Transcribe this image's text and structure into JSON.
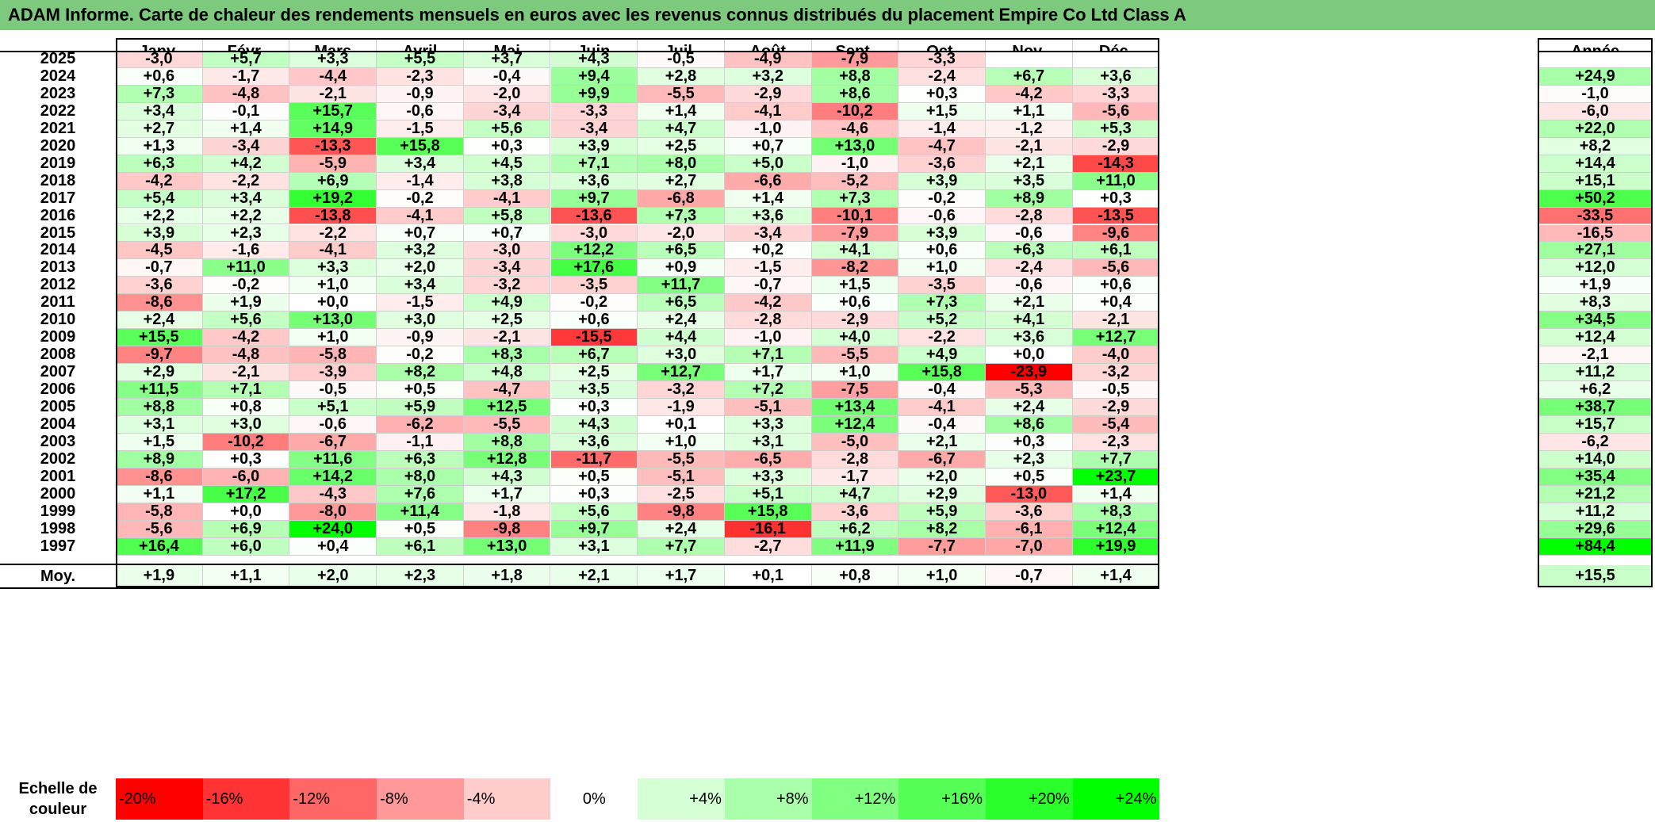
{
  "title": "ADAM Informe. Carte de chaleur des rendements mensuels en euros avec les revenus connus distribués du placement Empire Co Ltd Class A",
  "chart_data": {
    "type": "heatmap",
    "columns": [
      "Janv.",
      "Févr.",
      "Mars",
      "Avril",
      "Mai",
      "Juin",
      "Juil.",
      "Août",
      "Sept.",
      "Oct.",
      "Nov.",
      "Déc."
    ],
    "annual_header": "Année",
    "rows": [
      {
        "year": "2025",
        "values": [
          "-3,0",
          "+5,7",
          "+3,3",
          "+5,5",
          "+3,7",
          "+4,3",
          "-0,5",
          "-4,9",
          "-7,9",
          "-3,3",
          "",
          ""
        ],
        "annual": ""
      },
      {
        "year": "2024",
        "values": [
          "+0,6",
          "-1,7",
          "-4,4",
          "-2,3",
          "-0,4",
          "+9,4",
          "+2,8",
          "+3,2",
          "+8,8",
          "-2,4",
          "+6,7",
          "+3,6"
        ],
        "annual": "+24,9"
      },
      {
        "year": "2023",
        "values": [
          "+7,3",
          "-4,8",
          "-2,1",
          "-0,9",
          "-2,0",
          "+9,9",
          "-5,5",
          "-2,9",
          "+8,6",
          "+0,3",
          "-4,2",
          "-3,3"
        ],
        "annual": "-1,0"
      },
      {
        "year": "2022",
        "values": [
          "+3,4",
          "-0,1",
          "+15,7",
          "-0,6",
          "-3,4",
          "-3,3",
          "+1,4",
          "-4,1",
          "-10,2",
          "+1,5",
          "+1,1",
          "-5,6"
        ],
        "annual": "-6,0"
      },
      {
        "year": "2021",
        "values": [
          "+2,7",
          "+1,4",
          "+14,9",
          "-1,5",
          "+5,6",
          "-3,4",
          "+4,7",
          "-1,0",
          "-4,6",
          "-1,4",
          "-1,2",
          "+5,3"
        ],
        "annual": "+22,0"
      },
      {
        "year": "2020",
        "values": [
          "+1,3",
          "-3,4",
          "-13,3",
          "+15,8",
          "+0,3",
          "+3,9",
          "+2,5",
          "+0,7",
          "+13,0",
          "-4,7",
          "-2,1",
          "-2,9"
        ],
        "annual": "+8,2"
      },
      {
        "year": "2019",
        "values": [
          "+6,3",
          "+4,2",
          "-5,9",
          "+3,4",
          "+4,5",
          "+7,1",
          "+8,0",
          "+5,0",
          "-1,0",
          "-3,6",
          "+2,1",
          "-14,3"
        ],
        "annual": "+14,4"
      },
      {
        "year": "2018",
        "values": [
          "-4,2",
          "-2,2",
          "+6,9",
          "-1,4",
          "+3,8",
          "+3,6",
          "+2,7",
          "-6,6",
          "-5,2",
          "+3,9",
          "+3,5",
          "+11,0"
        ],
        "annual": "+15,1"
      },
      {
        "year": "2017",
        "values": [
          "+5,4",
          "+3,4",
          "+19,2",
          "-0,2",
          "-4,1",
          "+9,7",
          "-6,8",
          "+1,4",
          "+7,3",
          "-0,2",
          "+8,9",
          "+0,3"
        ],
        "annual": "+50,2"
      },
      {
        "year": "2016",
        "values": [
          "+2,2",
          "+2,2",
          "-13,8",
          "-4,1",
          "+5,8",
          "-13,6",
          "+7,3",
          "+3,6",
          "-10,1",
          "-0,6",
          "-2,8",
          "-13,5"
        ],
        "annual": "-33,5"
      },
      {
        "year": "2015",
        "values": [
          "+3,9",
          "+2,3",
          "-2,2",
          "+0,7",
          "+0,7",
          "-3,0",
          "-2,0",
          "-3,4",
          "-7,9",
          "+3,9",
          "-0,6",
          "-9,6"
        ],
        "annual": "-16,5"
      },
      {
        "year": "2014",
        "values": [
          "-4,5",
          "-1,6",
          "-4,1",
          "+3,2",
          "-3,0",
          "+12,2",
          "+6,5",
          "+0,2",
          "+4,1",
          "+0,6",
          "+6,3",
          "+6,1"
        ],
        "annual": "+27,1"
      },
      {
        "year": "2013",
        "values": [
          "-0,7",
          "+11,0",
          "+3,3",
          "+2,0",
          "-3,4",
          "+17,6",
          "+0,9",
          "-1,5",
          "-8,2",
          "+1,0",
          "-2,4",
          "-5,6"
        ],
        "annual": "+12,0"
      },
      {
        "year": "2012",
        "values": [
          "-3,6",
          "-0,2",
          "+1,0",
          "+3,4",
          "-3,2",
          "-3,5",
          "+11,7",
          "-0,7",
          "+1,5",
          "-3,5",
          "-0,6",
          "+0,6"
        ],
        "annual": "+1,9"
      },
      {
        "year": "2011",
        "values": [
          "-8,6",
          "+1,9",
          "+0,0",
          "-1,5",
          "+4,9",
          "-0,2",
          "+6,5",
          "-4,2",
          "+0,6",
          "+7,3",
          "+2,1",
          "+0,4"
        ],
        "annual": "+8,3"
      },
      {
        "year": "2010",
        "values": [
          "+2,4",
          "+5,6",
          "+13,0",
          "+3,0",
          "+2,5",
          "+0,6",
          "+2,4",
          "-2,8",
          "-2,9",
          "+5,2",
          "+4,1",
          "-2,1"
        ],
        "annual": "+34,5"
      },
      {
        "year": "2009",
        "values": [
          "+15,5",
          "-4,2",
          "+1,0",
          "-0,9",
          "-2,1",
          "-15,5",
          "+4,4",
          "-1,0",
          "+4,0",
          "-2,2",
          "+3,6",
          "+12,7"
        ],
        "annual": "+12,4"
      },
      {
        "year": "2008",
        "values": [
          "-9,7",
          "-4,8",
          "-5,8",
          "-0,2",
          "+8,3",
          "+6,7",
          "+3,0",
          "+7,1",
          "-5,5",
          "+4,9",
          "+0,0",
          "-4,0"
        ],
        "annual": "-2,1"
      },
      {
        "year": "2007",
        "values": [
          "+2,9",
          "-2,1",
          "-3,9",
          "+8,2",
          "+4,8",
          "+2,5",
          "+12,7",
          "+1,7",
          "+1,0",
          "+15,8",
          "-23,9",
          "-3,2"
        ],
        "annual": "+11,2"
      },
      {
        "year": "2006",
        "values": [
          "+11,5",
          "+7,1",
          "-0,5",
          "+0,5",
          "-4,7",
          "+3,5",
          "-3,2",
          "+7,2",
          "-7,5",
          "-0,4",
          "-5,3",
          "-0,5"
        ],
        "annual": "+6,2"
      },
      {
        "year": "2005",
        "values": [
          "+8,8",
          "+0,8",
          "+5,1",
          "+5,9",
          "+12,5",
          "+0,3",
          "-1,9",
          "-5,1",
          "+13,4",
          "-4,1",
          "+2,4",
          "-2,9"
        ],
        "annual": "+38,7"
      },
      {
        "year": "2004",
        "values": [
          "+3,1",
          "+3,0",
          "-0,6",
          "-6,2",
          "-5,5",
          "+4,3",
          "+0,1",
          "+3,3",
          "+12,4",
          "-0,4",
          "+8,6",
          "-5,4"
        ],
        "annual": "+15,7"
      },
      {
        "year": "2003",
        "values": [
          "+1,5",
          "-10,2",
          "-6,7",
          "-1,1",
          "+8,8",
          "+3,6",
          "+1,0",
          "+3,1",
          "-5,0",
          "+2,1",
          "+0,3",
          "-2,3"
        ],
        "annual": "-6,2"
      },
      {
        "year": "2002",
        "values": [
          "+8,9",
          "+0,3",
          "+11,6",
          "+6,3",
          "+12,8",
          "-11,7",
          "-5,5",
          "-6,5",
          "-2,8",
          "-6,7",
          "+2,3",
          "+7,7"
        ],
        "annual": "+14,0"
      },
      {
        "year": "2001",
        "values": [
          "-8,6",
          "-6,0",
          "+14,2",
          "+8,0",
          "+4,3",
          "+0,5",
          "-5,1",
          "+3,3",
          "-1,7",
          "+2,0",
          "+0,5",
          "+23,7"
        ],
        "annual": "+35,4"
      },
      {
        "year": "2000",
        "values": [
          "+1,1",
          "+17,2",
          "-4,3",
          "+7,6",
          "+1,7",
          "+0,3",
          "-2,5",
          "+5,1",
          "+4,7",
          "+2,9",
          "-13,0",
          "+1,4"
        ],
        "annual": "+21,2"
      },
      {
        "year": "1999",
        "values": [
          "-5,8",
          "+0,0",
          "-8,0",
          "+11,4",
          "-1,8",
          "+5,6",
          "-9,8",
          "+15,8",
          "-3,6",
          "+5,9",
          "-3,6",
          "+8,3"
        ],
        "annual": "+11,2"
      },
      {
        "year": "1998",
        "values": [
          "-5,6",
          "+6,9",
          "+24,0",
          "+0,5",
          "-9,8",
          "+9,7",
          "+2,4",
          "-16,1",
          "+6,2",
          "+8,2",
          "-6,1",
          "+12,4"
        ],
        "annual": "+29,6"
      },
      {
        "year": "1997",
        "values": [
          "+16,4",
          "+6,0",
          "+0,4",
          "+6,1",
          "+13,0",
          "+3,1",
          "+7,7",
          "-2,7",
          "+11,9",
          "-7,7",
          "-7,0",
          "+19,9"
        ],
        "annual": "+84,4"
      }
    ],
    "average": {
      "label": "Moy.",
      "values": [
        "+1,9",
        "+1,1",
        "+2,0",
        "+2,3",
        "+1,8",
        "+2,1",
        "+1,7",
        "+0,1",
        "+0,8",
        "+1,0",
        "-0,7",
        "+1,4"
      ],
      "annual": "+15,5"
    },
    "scale": {
      "label_line1": "Echelle de",
      "label_line2": "couleur",
      "steps": [
        {
          "label": "-20%",
          "value": -20
        },
        {
          "label": "-16%",
          "value": -16
        },
        {
          "label": "-12%",
          "value": -12
        },
        {
          "label": "-8%",
          "value": -8
        },
        {
          "label": "-4%",
          "value": -4
        },
        {
          "label": "0%",
          "value": 0
        },
        {
          "label": "+4%",
          "value": 4
        },
        {
          "label": "+8%",
          "value": 8
        },
        {
          "label": "+12%",
          "value": 12
        },
        {
          "label": "+16%",
          "value": 16
        },
        {
          "label": "+20%",
          "value": 20
        },
        {
          "label": "+24%",
          "value": 24
        }
      ]
    },
    "colors": {
      "negative_max": "#ff0000",
      "neutral": "#ffffff",
      "positive_max": "#00ff00",
      "title_bar": "#7dc97d"
    }
  }
}
